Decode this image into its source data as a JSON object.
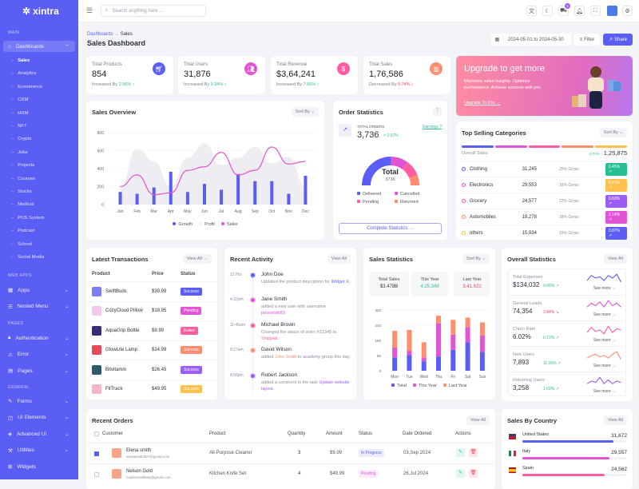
{
  "brand": "xintra",
  "sidebar": {
    "sections": {
      "main": "MAIN",
      "web_apps": "WEB APPS",
      "pages": "PAGES",
      "general": "GENERAL"
    },
    "dashboards": "Dashboards",
    "subitems": [
      "Sales",
      "Analytics",
      "Ecommerce",
      "CRM",
      "HRM",
      "NFT",
      "Crypto",
      "Jobs",
      "Projects",
      "Courses",
      "Stocks",
      "Medical",
      "POS System",
      "Podcast",
      "School",
      "Social Media"
    ],
    "web_apps": [
      "Apps",
      "Nested Menu"
    ],
    "pages": [
      "Authentication",
      "Error",
      "Pages"
    ],
    "general": [
      "Forms",
      "UI Elements",
      "Advanced UI",
      "Utilities",
      "Widgets"
    ]
  },
  "header": {
    "search_placeholder": "Search anything here ...",
    "cart_count": "5"
  },
  "breadcrumb": {
    "parent": "Dashboards",
    "current": "Sales"
  },
  "page_title": "Sales Dashboard",
  "toolbar": {
    "date_range": "2024-05-01 to 2024-05-30",
    "filter": "Filter",
    "share": "Share"
  },
  "stats": [
    {
      "label": "Total Products",
      "value": "854",
      "change_text": "Increased By",
      "change": "2.56%",
      "dir": "up",
      "color": "#5b5ef4",
      "icon": "cart-icon"
    },
    {
      "label": "Total Users",
      "value": "31,876",
      "change_text": "Increased By",
      "change": "0.34%",
      "dir": "up",
      "color": "#e354d4",
      "icon": "users-icon"
    },
    {
      "label": "Total Revenue",
      "value": "$3,64,241",
      "change_text": "Increased By",
      "change": "7.66%",
      "dir": "up",
      "color": "#ff5d9f",
      "icon": "dollar-icon"
    },
    {
      "label": "Total Sales",
      "value": "1,76,586",
      "change_text": "Decreased By",
      "change": "0.74%",
      "dir": "down",
      "color": "#ff8e6f",
      "icon": "chart-icon"
    }
  ],
  "banner": {
    "title": "Upgrade to get more",
    "text": "Maximize sales insights. Optimize performance. Achieve success with pro.",
    "link": "Upgrade To Pro →"
  },
  "sales_overview": {
    "title": "Sales Overview",
    "sort": "Sort By"
  },
  "chart_data": [
    {
      "type": "bar",
      "title": "Sales Overview",
      "categories": [
        "Jan",
        "Feb",
        "Mar",
        "Apr",
        "May",
        "Jun",
        "Jul",
        "Aug",
        "Sep",
        "Oct",
        "Nov",
        "Dec"
      ],
      "ylim": [
        0,
        800
      ],
      "yticks": [
        0,
        200,
        400,
        600,
        800
      ],
      "legend": "bottom",
      "grid": true,
      "series": [
        {
          "name": "Growth",
          "kind": "bar",
          "color": "#5b5ef4",
          "values": [
            140,
            120,
            190,
            365,
            140,
            230,
            165,
            340,
            260,
            260,
            120,
            320
          ]
        },
        {
          "name": "Profit",
          "kind": "area",
          "color": "#eeeef2",
          "values": [
            200,
            620,
            480,
            200,
            520,
            680,
            440,
            520,
            640,
            460,
            530,
            200
          ]
        },
        {
          "name": "Sales",
          "kind": "line",
          "color": "#e354d4",
          "values": [
            200,
            330,
            110,
            130,
            380,
            420,
            580,
            330,
            380,
            640,
            450,
            480
          ]
        }
      ]
    },
    {
      "type": "bar",
      "stacked": true,
      "title": "Sales Statistics",
      "categories": [
        "Mon",
        "Tue",
        "Wed",
        "Thu",
        "Fri",
        "Sat",
        "Sun"
      ],
      "ylim": [
        0,
        320
      ],
      "yticks": [
        0,
        80,
        160,
        240,
        320
      ],
      "legend": "bottom",
      "grid": true,
      "series": [
        {
          "name": "Total",
          "color": "#5b5ef4",
          "values": [
            70,
            82,
            50,
            75,
            110,
            150,
            100
          ]
        },
        {
          "name": "This Year",
          "color": "#e354d4",
          "values": [
            52,
            23,
            20,
            175,
            80,
            80,
            85
          ]
        },
        {
          "name": "Last Year",
          "color": "#ff8e6f",
          "values": [
            88,
            110,
            80,
            40,
            78,
            50,
            70
          ]
        }
      ]
    }
  ],
  "order_stats": {
    "title": "Order Statistics",
    "total_label": "TOTAL ORDERS",
    "total": "3,736",
    "change": "0.57%",
    "earnings": "Earnings ?",
    "gauge_label": "Total",
    "gauge_value": "3736",
    "legend": [
      {
        "name": "Delivered",
        "color": "#5b5ef4",
        "share": 0.5
      },
      {
        "name": "Cancelled",
        "color": "#e354d4",
        "share": 0.2
      },
      {
        "name": "Pending",
        "color": "#ff5d9f",
        "share": 0.18
      },
      {
        "name": "Returned",
        "color": "#ff8e6f",
        "share": 0.12
      }
    ],
    "button": "Complete Statistics →"
  },
  "top_selling": {
    "title": "Top Selling Categories",
    "sort": "Sort By",
    "overall_label": "Overall Sales",
    "overall_change": "2.74%",
    "overall_value": "1,25,875",
    "items": [
      {
        "name": "Clothing",
        "value": "31,245",
        "gross": "25% Gross",
        "badge": "0.45%",
        "color": "#26bf94",
        "ring": "#5b5ef4"
      },
      {
        "name": "Electronics",
        "value": "29,553",
        "gross": "16% Gross",
        "badge": "0.27%",
        "color": "#ffc14d",
        "ring": "#e354d4"
      },
      {
        "name": "Grocery",
        "value": "24,577",
        "gross": "22% Gross",
        "badge": "0.63%",
        "color": "#9e5cf7",
        "ring": "#ff5d9f"
      },
      {
        "name": "Automobiles",
        "value": "19,278",
        "gross": "18% Gross",
        "badge": "1.14%",
        "color": "#e354d4",
        "ring": "#ff8e6f"
      },
      {
        "name": "others",
        "value": "15,934",
        "gross": "15% Gross",
        "badge": "3.87%",
        "color": "#5b5ef4",
        "ring": "#ffc14d"
      }
    ]
  },
  "transactions": {
    "title": "Latest Transactions",
    "view_all": "View All →",
    "cols": [
      "Product",
      "Price",
      "Status"
    ],
    "rows": [
      {
        "product": "SwiftBuds",
        "price": "$39.99",
        "status": "Success",
        "color": "#5b5ef4",
        "thumb": "#7b7ef8"
      },
      {
        "product": "CozyCloud Pillow",
        "price": "$19.95",
        "status": "Pending",
        "color": "#e354d4",
        "thumb": "#f3c8ef"
      },
      {
        "product": "AquaGrip Bottle",
        "price": "$9.99",
        "status": "Failed",
        "color": "#ff5d9f",
        "thumb": "#3a2a7a"
      },
      {
        "product": "GlowLite Lamp",
        "price": "$24.99",
        "status": "Success",
        "color": "#ff8e6f",
        "thumb": "#e94a5a"
      },
      {
        "product": "Bitvitamin",
        "price": "$26.45",
        "status": "Success",
        "color": "#9e5cf7",
        "thumb": "#2f5a6a"
      },
      {
        "product": "FitTrack",
        "price": "$49.95",
        "status": "Success",
        "color": "#ffc14d",
        "thumb": "#f7b5c8"
      }
    ]
  },
  "activity": {
    "title": "Recent Activity",
    "view_all": "View All",
    "items": [
      {
        "time": "12 Hrs",
        "name": "John Doe",
        "pre": "Updated the product description for ",
        "link": "Widget X.",
        "post": "",
        "color": "#5b5ef4"
      },
      {
        "time": "4:32pm",
        "name": "Jane Smith",
        "pre": "added a new user with username ",
        "link": "janesmith89.",
        "post": "",
        "color": "#e354d4"
      },
      {
        "time": "11:45am",
        "name": "Michael Brown",
        "pre": "Changed the status of order #12345 to ",
        "link": "Shipped.",
        "post": "",
        "color": "#ff5d9f"
      },
      {
        "time": "9:27am",
        "name": "David Wilson",
        "pre": "added ",
        "link": "John Smith",
        "post": " to academy group this day.",
        "color": "#ff8e6f"
      },
      {
        "time": "8:56pm",
        "name": "Robert Jackson",
        "pre": "added a comment to the task ",
        "link": "Update website layout.",
        "post": "",
        "color": "#9e5cf7"
      }
    ]
  },
  "sales_stats": {
    "title": "Sales Statistics",
    "sort": "Sort By",
    "boxes": [
      {
        "label": "Total Sales",
        "value": "$3.478B",
        "color": "#333"
      },
      {
        "label": "This Year",
        "value": "4,25,349",
        "color": "#26bf94"
      },
      {
        "label": "Last Year",
        "value": "3,41,622",
        "color": "#f0465a"
      }
    ]
  },
  "overall": {
    "title": "Overall Statistics",
    "view_all": "View All",
    "see_more": "See more →",
    "items": [
      {
        "label": "Total Expenses",
        "value": "$134,032",
        "change": "0.45%",
        "dir": "up",
        "color": "#5b5ef4",
        "spark": [
          3,
          7,
          5,
          6,
          3,
          7,
          5,
          8,
          2
        ]
      },
      {
        "label": "General Leads",
        "value": "74,354",
        "change": "3.84%",
        "dir": "down",
        "color": "#e354d4",
        "spark": [
          3,
          6,
          4,
          7,
          3,
          8,
          4,
          6,
          3
        ]
      },
      {
        "label": "Churn Rate",
        "value": "6.02%",
        "change": "0.72%",
        "dir": "up",
        "color": "#ff5d9f",
        "spark": [
          3,
          7,
          4,
          5,
          2,
          8,
          3,
          6,
          5
        ]
      },
      {
        "label": "New Users",
        "value": "7,893",
        "change": "11.05%",
        "dir": "up",
        "color": "#ff8e6f",
        "spark": [
          3,
          5,
          6,
          4,
          5,
          3,
          6,
          8,
          2
        ]
      },
      {
        "label": "Returning Users",
        "value": "3,258",
        "change": "1.69%",
        "dir": "up",
        "color": "#9e5cf7",
        "spark": [
          3,
          5,
          4,
          8,
          3,
          6,
          3,
          5,
          4
        ]
      }
    ]
  },
  "orders": {
    "title": "Recent Orders",
    "view_all": "View All",
    "cols": [
      "Customer",
      "Product",
      "Quantity",
      "Amount",
      "Status",
      "Date Ordered",
      "Actions"
    ],
    "rows": [
      {
        "name": "Elena smith",
        "email": "elenasmith387@gmail.com",
        "product": "All-Purpose Cleaner",
        "qty": "3",
        "amount": "$9.99",
        "status": "In Progress",
        "status_color": "#5b5ef4",
        "date": "03,Sep 2024",
        "checked": true
      },
      {
        "name": "Nelson Gold",
        "email": "noahrussell556@gmail.com",
        "product": "Kitchen Knife Set",
        "qty": "4",
        "amount": "$49.99",
        "status": "Pending",
        "status_color": "#e354d4",
        "date": "26,Jul 2024",
        "checked": false
      }
    ]
  },
  "countries": {
    "title": "Sales By Country",
    "view_all": "View All",
    "items": [
      {
        "name": "United States",
        "value": "31,672",
        "pct": 0.88,
        "color": "#5b5ef4",
        "flag": "flag-us-icon"
      },
      {
        "name": "Italy",
        "value": "29,557",
        "pct": 0.84,
        "color": "#e354d4",
        "flag": "flag-it-icon"
      },
      {
        "name": "Spain",
        "value": "24,562",
        "pct": 0.79,
        "color": "#ff5d9f",
        "flag": "flag-es-icon"
      }
    ]
  }
}
